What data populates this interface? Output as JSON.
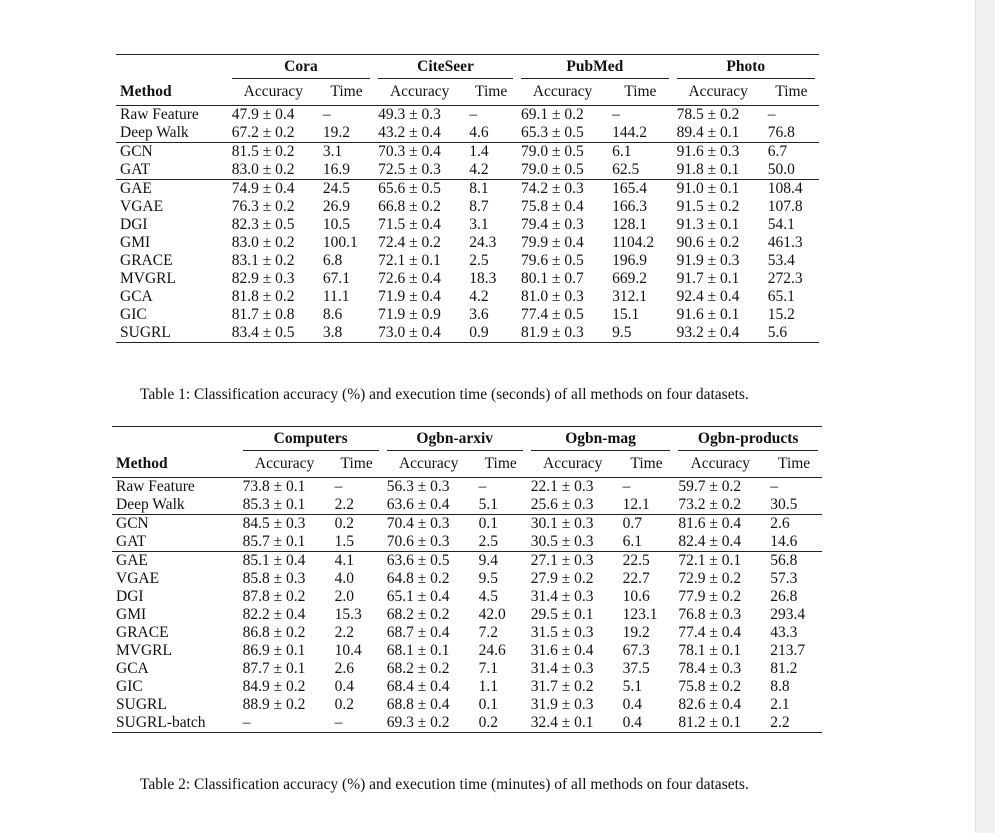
{
  "table1": {
    "datasets": [
      "Cora",
      "CiteSeer",
      "PubMed",
      "Photo"
    ],
    "method_header": "Method",
    "accuracy_header": "Accuracy",
    "time_header": "Time",
    "groups": [
      [
        {
          "method": "Raw Feature",
          "cells": [
            "47.9 ± 0.4",
            "–",
            "49.3 ± 0.3",
            "–",
            "69.1 ± 0.2",
            "–",
            "78.5 ± 0.2",
            "–"
          ]
        },
        {
          "method": "Deep Walk",
          "cells": [
            "67.2 ± 0.2",
            "19.2",
            "43.2 ± 0.4",
            "4.6",
            "65.3 ± 0.5",
            "144.2",
            "89.4 ± 0.1",
            "76.8"
          ]
        }
      ],
      [
        {
          "method": "GCN",
          "cells": [
            "81.5 ± 0.2",
            "3.1",
            "70.3 ± 0.4",
            "1.4",
            "79.0 ± 0.5",
            "6.1",
            "91.6 ± 0.3",
            "6.7"
          ]
        },
        {
          "method": "GAT",
          "cells": [
            "83.0 ± 0.2",
            "16.9",
            "72.5 ± 0.3",
            "4.2",
            "79.0 ± 0.5",
            "62.5",
            "91.8 ± 0.1",
            "50.0"
          ]
        }
      ],
      [
        {
          "method": "GAE",
          "cells": [
            "74.9 ± 0.4",
            "24.5",
            "65.6 ± 0.5",
            "8.1",
            "74.2 ± 0.3",
            "165.4",
            "91.0 ± 0.1",
            "108.4"
          ]
        },
        {
          "method": "VGAE",
          "cells": [
            "76.3 ± 0.2",
            "26.9",
            "66.8 ± 0.2",
            "8.7",
            "75.8 ± 0.4",
            "166.3",
            "91.5 ± 0.2",
            "107.8"
          ]
        },
        {
          "method": "DGI",
          "cells": [
            "82.3 ± 0.5",
            "10.5",
            "71.5 ± 0.4",
            "3.1",
            "79.4 ± 0.3",
            "128.1",
            "91.3 ± 0.1",
            "54.1"
          ]
        },
        {
          "method": "GMI",
          "cells": [
            "83.0 ± 0.2",
            "100.1",
            "72.4 ± 0.2",
            "24.3",
            "79.9 ± 0.4",
            "1104.2",
            "90.6 ± 0.2",
            "461.3"
          ]
        },
        {
          "method": "GRACE",
          "cells": [
            "83.1 ± 0.2",
            "6.8",
            "72.1 ± 0.1",
            "2.5",
            "79.6 ± 0.5",
            "196.9",
            "91.9 ± 0.3",
            "53.4"
          ]
        },
        {
          "method": "MVGRL",
          "cells": [
            "82.9 ± 0.3",
            "67.1",
            "72.6 ± 0.4",
            "18.3",
            "80.1 ± 0.7",
            "669.2",
            "91.7 ± 0.1",
            "272.3"
          ]
        },
        {
          "method": "GCA",
          "cells": [
            "81.8 ± 0.2",
            "11.1",
            "71.9 ± 0.4",
            "4.2",
            "81.0 ± 0.3",
            "312.1",
            "92.4 ± 0.4",
            "65.1"
          ]
        },
        {
          "method": "GIC",
          "cells": [
            "81.7 ± 0.8",
            "8.6",
            "71.9 ± 0.9",
            "3.6",
            "77.4 ± 0.5",
            "15.1",
            "91.6 ± 0.1",
            "15.2"
          ]
        },
        {
          "method": "SUGRL",
          "cells": [
            "83.4 ± 0.5",
            "3.8",
            "73.0 ± 0.4",
            "0.9",
            "81.9 ± 0.3",
            "9.5",
            "93.2 ± 0.4",
            "5.6"
          ]
        }
      ]
    ],
    "caption": "Table 1: Classification accuracy (%) and execution time (seconds) of all methods on four datasets."
  },
  "table2": {
    "datasets": [
      "Computers",
      "Ogbn-arxiv",
      "Ogbn-mag",
      "Ogbn-products"
    ],
    "method_header": "Method",
    "accuracy_header": "Accuracy",
    "time_header": "Time",
    "groups": [
      [
        {
          "method": "Raw Feature",
          "cells": [
            "73.8 ± 0.1",
            "–",
            "56.3 ± 0.3",
            "–",
            "22.1 ± 0.3",
            "–",
            "59.7 ± 0.2",
            "–"
          ]
        },
        {
          "method": "Deep Walk",
          "cells": [
            "85.3 ± 0.1",
            "2.2",
            "63.6 ± 0.4",
            "5.1",
            "25.6 ± 0.3",
            "12.1",
            "73.2 ± 0.2",
            "30.5"
          ]
        }
      ],
      [
        {
          "method": "GCN",
          "cells": [
            "84.5 ± 0.3",
            "0.2",
            "70.4 ± 0.3",
            "0.1",
            "30.1 ± 0.3",
            "0.7",
            "81.6 ± 0.4",
            "2.6"
          ]
        },
        {
          "method": "GAT",
          "cells": [
            "85.7 ± 0.1",
            "1.5",
            "70.6 ± 0.3",
            "2.5",
            "30.5 ± 0.3",
            "6.1",
            "82.4 ± 0.4",
            "14.6"
          ]
        }
      ],
      [
        {
          "method": "GAE",
          "cells": [
            "85.1 ± 0.4",
            "4.1",
            "63.6 ± 0.5",
            "9.4",
            "27.1 ± 0.3",
            "22.5",
            "72.1 ± 0.1",
            "56.8"
          ]
        },
        {
          "method": "VGAE",
          "cells": [
            "85.8 ± 0.3",
            "4.0",
            "64.8 ± 0.2",
            "9.5",
            "27.9 ± 0.2",
            "22.7",
            "72.9 ± 0.2",
            "57.3"
          ]
        },
        {
          "method": "DGI",
          "cells": [
            "87.8 ± 0.2",
            "2.0",
            "65.1 ± 0.4",
            "4.5",
            "31.4 ± 0.3",
            "10.6",
            "77.9 ± 0.2",
            "26.8"
          ]
        },
        {
          "method": "GMI",
          "cells": [
            "82.2 ± 0.4",
            "15.3",
            "68.2 ± 0.2",
            "42.0",
            "29.5 ± 0.1",
            "123.1",
            "76.8 ± 0.3",
            "293.4"
          ]
        },
        {
          "method": "GRACE",
          "cells": [
            "86.8 ± 0.2",
            "2.2",
            "68.7 ± 0.4",
            "7.2",
            "31.5 ± 0.3",
            "19.2",
            "77.4 ± 0.4",
            "43.3"
          ]
        },
        {
          "method": "MVGRL",
          "cells": [
            "86.9 ± 0.1",
            "10.4",
            "68.1 ± 0.1",
            "24.6",
            "31.6 ± 0.4",
            "67.3",
            "78.1 ± 0.1",
            "213.7"
          ]
        },
        {
          "method": "GCA",
          "cells": [
            "87.7 ± 0.1",
            "2.6",
            "68.2 ± 0.2",
            "7.1",
            "31.4 ± 0.3",
            "37.5",
            "78.4 ± 0.3",
            "81.2"
          ]
        },
        {
          "method": "GIC",
          "cells": [
            "84.9 ± 0.2",
            "0.4",
            "68.4 ± 0.4",
            "1.1",
            "31.7 ± 0.2",
            "5.1",
            "75.8 ± 0.2",
            "8.8"
          ]
        },
        {
          "method": "SUGRL",
          "cells": [
            "88.9 ± 0.2",
            "0.2",
            "68.8 ± 0.4",
            "0.1",
            "31.9 ± 0.3",
            "0.4",
            "82.6 ± 0.4",
            "2.1"
          ]
        },
        {
          "method": "SUGRL-batch",
          "cells": [
            "–",
            "–",
            "69.3 ± 0.2",
            "0.2",
            "32.4 ± 0.1",
            "0.4",
            "81.2 ± 0.1",
            "2.2"
          ]
        }
      ]
    ],
    "caption": "Table 2: Classification accuracy (%) and execution time (minutes) of all methods on four datasets."
  }
}
